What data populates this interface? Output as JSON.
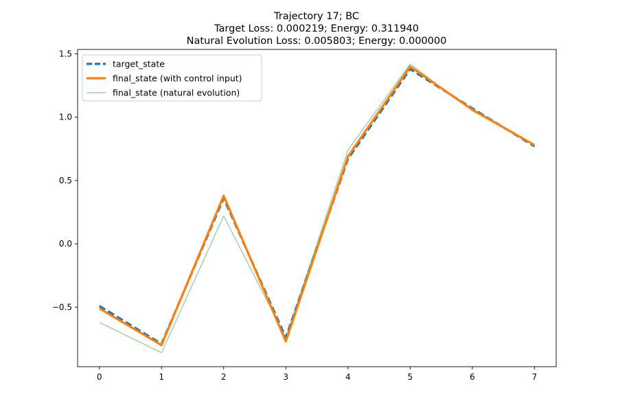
{
  "chart_data": {
    "type": "line",
    "title_lines": [
      "Trajectory 17; BC",
      "Target Loss: 0.000219; Energy: 0.311940",
      "Natural Evolution Loss: 0.005803; Energy: 0.000000"
    ],
    "xlabel": "",
    "ylabel": "",
    "xlim": [
      -0.35,
      7.35
    ],
    "ylim": [
      -0.97,
      1.535
    ],
    "x_ticks": [
      0,
      1,
      2,
      3,
      4,
      5,
      6,
      7
    ],
    "x_tick_labels": [
      "0",
      "1",
      "2",
      "3",
      "4",
      "5",
      "6",
      "7"
    ],
    "y_ticks": [
      -0.5,
      0.0,
      0.5,
      1.0,
      1.5
    ],
    "y_tick_labels": [
      "−0.5",
      "0.0",
      "0.5",
      "1.0",
      "1.5"
    ],
    "grid": false,
    "legend_position": "upper-left",
    "x": [
      0,
      1,
      2,
      3,
      4,
      5,
      6,
      7
    ],
    "series": [
      {
        "name": "target_state",
        "color": "#1f77b4",
        "style": "dashed",
        "values": [
          -0.49,
          -0.79,
          0.36,
          -0.74,
          0.67,
          1.38,
          1.07,
          0.77
        ]
      },
      {
        "name": "final_state (with control input)",
        "color": "#ff7f0e",
        "style": "solid-thick",
        "values": [
          -0.51,
          -0.8,
          0.38,
          -0.77,
          0.69,
          1.4,
          1.06,
          0.78
        ]
      },
      {
        "name": "final_state (natural evolution)",
        "color": "#2ca02c",
        "style": "solid-thin",
        "values": [
          -0.62,
          -0.86,
          0.22,
          -0.74,
          0.74,
          1.42,
          1.05,
          0.78
        ]
      }
    ]
  }
}
